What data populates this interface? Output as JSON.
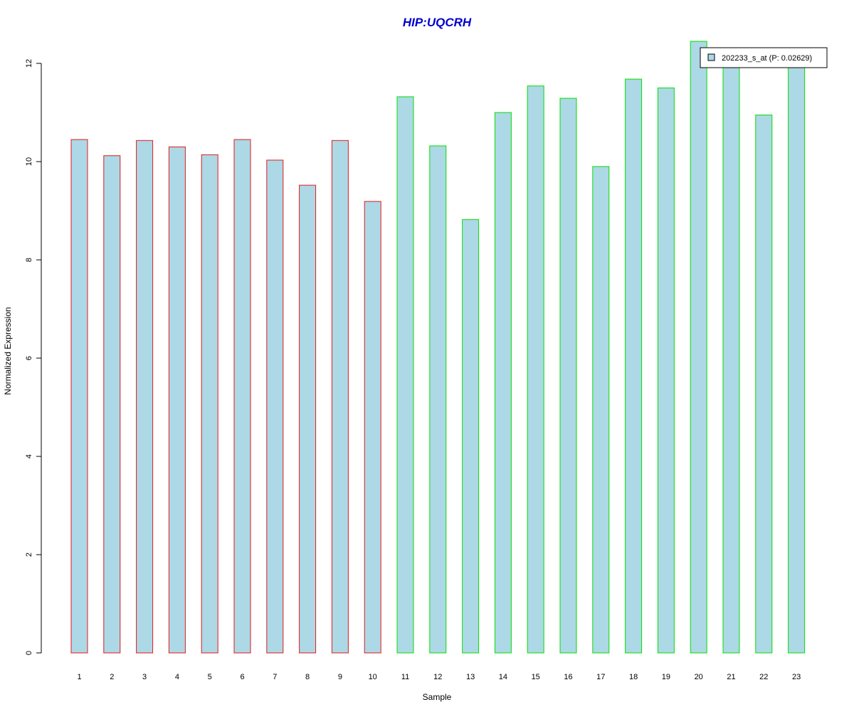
{
  "chart_data": {
    "type": "bar",
    "title": "HIP:UQCRH",
    "xlabel": "Sample",
    "ylabel": "Normalized Expression",
    "categories": [
      "1",
      "2",
      "3",
      "4",
      "5",
      "6",
      "7",
      "8",
      "9",
      "10",
      "11",
      "12",
      "13",
      "14",
      "15",
      "16",
      "17",
      "18",
      "19",
      "20",
      "21",
      "22",
      "23"
    ],
    "series": [
      {
        "name": "202233_s_at (P: 0.02629)",
        "values": [
          10.45,
          10.12,
          10.43,
          10.3,
          10.14,
          10.45,
          10.03,
          9.52,
          10.43,
          9.19,
          11.32,
          10.32,
          8.82,
          11.0,
          11.54,
          11.29,
          9.9,
          11.68,
          11.5,
          12.45,
          12.05,
          10.95,
          12.02
        ]
      }
    ],
    "group_outline_colors": [
      "#e31a1c",
      "#e31a1c",
      "#e31a1c",
      "#e31a1c",
      "#e31a1c",
      "#e31a1c",
      "#e31a1c",
      "#e31a1c",
      "#e31a1c",
      "#e31a1c",
      "#00e000",
      "#00e000",
      "#00e000",
      "#00e000",
      "#00e000",
      "#00e000",
      "#00e000",
      "#00e000",
      "#00e000",
      "#00e000",
      "#00e000",
      "#00e000",
      "#00e000"
    ],
    "ylim": [
      0,
      12
    ],
    "yticks": [
      0,
      2,
      4,
      6,
      8,
      10,
      12
    ],
    "grid": false,
    "legend_position": "top-right",
    "colors": {
      "bar_fill": "#add8e6",
      "title": "#0000cd",
      "axis": "#000000",
      "legend_border": "#000000"
    }
  }
}
